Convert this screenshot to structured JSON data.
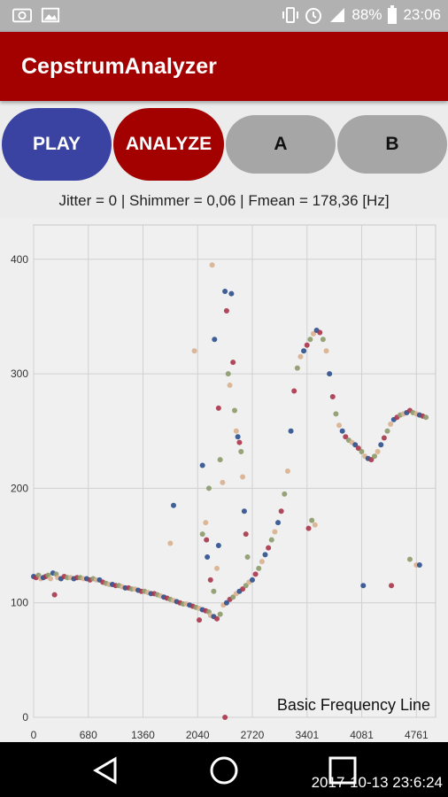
{
  "status_bar": {
    "battery": "88%",
    "time": "23:06",
    "left_icons": [
      "screenshot-icon",
      "image-icon"
    ],
    "right_icons": [
      "vibrate-icon",
      "alarm-icon",
      "signal-icon",
      "battery-icon"
    ]
  },
  "app": {
    "title": "CepstrumAnalyzer",
    "toolbar_color": "#a30000"
  },
  "buttons": {
    "play": "PLAY",
    "analyze": "ANALYZE",
    "a": "A",
    "b": "B"
  },
  "stats_line": "Jitter = 0 | Shimmer = 0,06 | Fmean = 178,36 [Hz]",
  "chart_data": {
    "type": "scatter",
    "description": "Basic Frequency Line",
    "xlim": [
      0,
      5000
    ],
    "ylim": [
      0,
      430
    ],
    "x_ticks": [
      "0",
      "680",
      "1360",
      "2040",
      "2720",
      "3401",
      "4081",
      "4761"
    ],
    "x_tick_values": [
      0,
      680,
      1360,
      2040,
      2720,
      3401,
      4081,
      4761
    ],
    "y_ticks": [
      "0",
      "100",
      "200",
      "300",
      "400"
    ],
    "y_tick_values": [
      0,
      100,
      200,
      300,
      400
    ],
    "grid": true,
    "series_colors": [
      "#2b4f8c",
      "#a8344a",
      "#8c9a6a",
      "#d8b08e"
    ],
    "points": [
      [
        0,
        123
      ],
      [
        30,
        122
      ],
      [
        60,
        124
      ],
      [
        90,
        121
      ],
      [
        120,
        122
      ],
      [
        150,
        123
      ],
      [
        180,
        124
      ],
      [
        210,
        121
      ],
      [
        240,
        126
      ],
      [
        260,
        107
      ],
      [
        280,
        125
      ],
      [
        300,
        122
      ],
      [
        340,
        121
      ],
      [
        380,
        123
      ],
      [
        420,
        122
      ],
      [
        460,
        122
      ],
      [
        500,
        121
      ],
      [
        540,
        122
      ],
      [
        580,
        122
      ],
      [
        620,
        121
      ],
      [
        660,
        121
      ],
      [
        700,
        120
      ],
      [
        740,
        121
      ],
      [
        780,
        120
      ],
      [
        820,
        120
      ],
      [
        860,
        118
      ],
      [
        900,
        117
      ],
      [
        940,
        116
      ],
      [
        980,
        116
      ],
      [
        1020,
        115
      ],
      [
        1060,
        115
      ],
      [
        1100,
        114
      ],
      [
        1140,
        113
      ],
      [
        1180,
        113
      ],
      [
        1220,
        112
      ],
      [
        1260,
        112
      ],
      [
        1300,
        111
      ],
      [
        1340,
        110
      ],
      [
        1380,
        110
      ],
      [
        1420,
        109
      ],
      [
        1460,
        108
      ],
      [
        1500,
        108
      ],
      [
        1540,
        107
      ],
      [
        1580,
        106
      ],
      [
        1620,
        105
      ],
      [
        1660,
        104
      ],
      [
        1700,
        103
      ],
      [
        1740,
        102
      ],
      [
        1780,
        101
      ],
      [
        1820,
        100
      ],
      [
        1860,
        99
      ],
      [
        1900,
        99
      ],
      [
        1940,
        98
      ],
      [
        1980,
        97
      ],
      [
        2020,
        96
      ],
      [
        2060,
        95
      ],
      [
        2100,
        94
      ],
      [
        2140,
        93
      ],
      [
        2180,
        92
      ],
      [
        2200,
        89
      ],
      [
        2240,
        88
      ],
      [
        2280,
        86
      ],
      [
        2320,
        90
      ],
      [
        2360,
        98
      ],
      [
        2400,
        100
      ],
      [
        2440,
        103
      ],
      [
        2480,
        105
      ],
      [
        2520,
        108
      ],
      [
        2560,
        110
      ],
      [
        2600,
        112
      ],
      [
        2640,
        115
      ],
      [
        2680,
        118
      ],
      [
        2720,
        120
      ],
      [
        2760,
        125
      ],
      [
        2800,
        130
      ],
      [
        2840,
        136
      ],
      [
        2880,
        142
      ],
      [
        2920,
        148
      ],
      [
        2960,
        155
      ],
      [
        3000,
        162
      ],
      [
        3040,
        170
      ],
      [
        3080,
        180
      ],
      [
        3120,
        195
      ],
      [
        3160,
        215
      ],
      [
        3200,
        250
      ],
      [
        3240,
        285
      ],
      [
        3280,
        305
      ],
      [
        3320,
        315
      ],
      [
        3360,
        320
      ],
      [
        3400,
        325
      ],
      [
        3440,
        330
      ],
      [
        3480,
        335
      ],
      [
        3520,
        338
      ],
      [
        3560,
        336
      ],
      [
        3600,
        330
      ],
      [
        3640,
        320
      ],
      [
        3680,
        300
      ],
      [
        3720,
        280
      ],
      [
        3760,
        265
      ],
      [
        3800,
        255
      ],
      [
        3840,
        250
      ],
      [
        3880,
        245
      ],
      [
        3920,
        242
      ],
      [
        3960,
        240
      ],
      [
        4000,
        238
      ],
      [
        4040,
        235
      ],
      [
        4080,
        232
      ],
      [
        4120,
        228
      ],
      [
        4160,
        226
      ],
      [
        4200,
        225
      ],
      [
        4240,
        228
      ],
      [
        4280,
        232
      ],
      [
        4320,
        238
      ],
      [
        4360,
        244
      ],
      [
        4400,
        250
      ],
      [
        4440,
        256
      ],
      [
        4480,
        260
      ],
      [
        4520,
        262
      ],
      [
        4560,
        264
      ],
      [
        4600,
        265
      ],
      [
        4640,
        266
      ],
      [
        4680,
        268
      ],
      [
        4720,
        266
      ],
      [
        4760,
        265
      ],
      [
        4800,
        264
      ],
      [
        4840,
        263
      ],
      [
        4880,
        262
      ],
      [
        2000,
        320
      ],
      [
        2100,
        220
      ],
      [
        2150,
        155
      ],
      [
        2180,
        200
      ],
      [
        2220,
        395
      ],
      [
        2250,
        330
      ],
      [
        2300,
        270
      ],
      [
        2320,
        225
      ],
      [
        2350,
        205
      ],
      [
        2380,
        372
      ],
      [
        2400,
        355
      ],
      [
        2420,
        300
      ],
      [
        2440,
        290
      ],
      [
        2460,
        370
      ],
      [
        2480,
        310
      ],
      [
        2500,
        268
      ],
      [
        2520,
        250
      ],
      [
        2540,
        245
      ],
      [
        2560,
        240
      ],
      [
        2580,
        232
      ],
      [
        2600,
        210
      ],
      [
        2620,
        180
      ],
      [
        2640,
        160
      ],
      [
        2660,
        140
      ],
      [
        1700,
        152
      ],
      [
        1740,
        185
      ],
      [
        2060,
        85
      ],
      [
        2100,
        160
      ],
      [
        2140,
        170
      ],
      [
        2160,
        140
      ],
      [
        2200,
        120
      ],
      [
        2240,
        110
      ],
      [
        2280,
        130
      ],
      [
        2300,
        150
      ],
      [
        3420,
        165
      ],
      [
        3460,
        172
      ],
      [
        3500,
        168
      ],
      [
        4100,
        115
      ],
      [
        4450,
        115
      ],
      [
        4680,
        138
      ],
      [
        4760,
        133
      ],
      [
        4800,
        133
      ],
      [
        2380,
        0
      ]
    ]
  },
  "nav": {
    "back_icon": "back-triangle-icon",
    "home_icon": "home-circle-icon",
    "recent_icon": "recent-square-icon"
  },
  "timestamp": "2017-10-13 23:6:24"
}
